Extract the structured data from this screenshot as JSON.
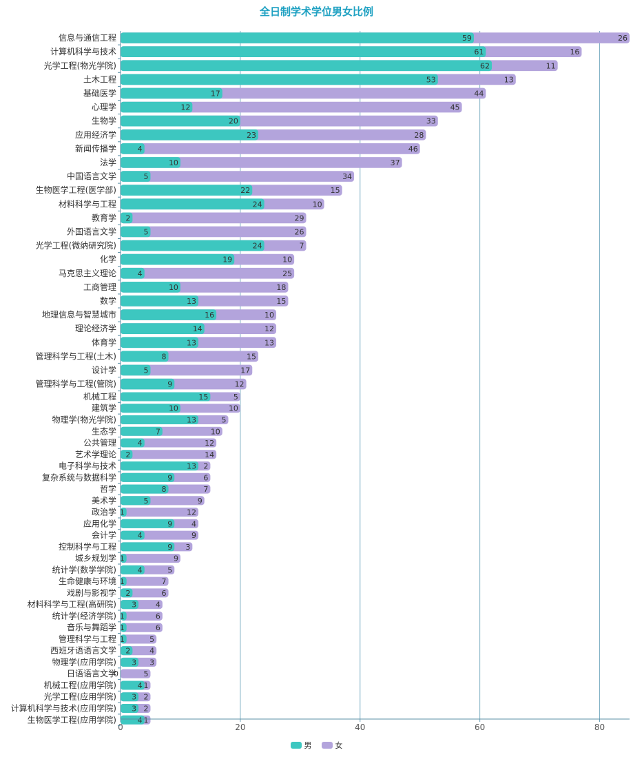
{
  "chart_data": {
    "type": "bar",
    "orientation": "horizontal",
    "stacked": true,
    "title": "全日制学术学位男女比例",
    "xlim": [
      0,
      85
    ],
    "x_ticks": [
      0,
      20,
      40,
      60,
      80
    ],
    "grid": true,
    "legend_position": "bottom",
    "categories": [
      "信息与通信工程",
      "计算机科学与技术",
      "光学工程(物光学院)",
      "土木工程",
      "基础医学",
      "心理学",
      "生物学",
      "应用经济学",
      "新闻传播学",
      "法学",
      "中国语言文学",
      "生物医学工程(医学部)",
      "材料科学与工程",
      "教育学",
      "外国语言文学",
      "光学工程(微纳研究院)",
      "化学",
      "马克思主义理论",
      "工商管理",
      "数学",
      "地理信息与智慧城市",
      "理论经济学",
      "体育学",
      "管理科学与工程(土木)",
      "设计学",
      "管理科学与工程(管院)",
      "机械工程",
      "建筑学",
      "物理学(物光学院)",
      "生态学",
      "公共管理",
      "艺术学理论",
      "电子科学与技术",
      "复杂系统与数据科学",
      "哲学",
      "美术学",
      "政治学",
      "应用化学",
      "会计学",
      "控制科学与工程",
      "城乡规划学",
      "统计学(数学学院)",
      "生命健康与环境",
      "戏剧与影视学",
      "材料科学与工程(高研院)",
      "统计学(经济学院)",
      "音乐与舞蹈学",
      "管理科学与工程",
      "西班牙语语言文学",
      "物理学(应用学院)",
      "日语语言文学",
      "机械工程(应用学院)",
      "光学工程(应用学院)",
      "计算机科学与技术(应用学院)",
      "生物医学工程(应用学院)"
    ],
    "series": [
      {
        "name": "男",
        "color": "#3dc7c0",
        "values": [
          59,
          61,
          62,
          53,
          17,
          12,
          20,
          23,
          4,
          10,
          5,
          22,
          24,
          2,
          5,
          24,
          19,
          4,
          10,
          13,
          16,
          14,
          13,
          8,
          5,
          9,
          15,
          10,
          13,
          7,
          4,
          2,
          13,
          9,
          8,
          5,
          1,
          9,
          4,
          9,
          1,
          4,
          1,
          2,
          3,
          1,
          1,
          1,
          2,
          3,
          0,
          4,
          3,
          3,
          4
        ]
      },
      {
        "name": "女",
        "color": "#b3a4dc",
        "values": [
          26,
          16,
          11,
          13,
          44,
          45,
          33,
          28,
          46,
          37,
          34,
          15,
          10,
          29,
          26,
          7,
          10,
          25,
          18,
          15,
          10,
          12,
          13,
          15,
          17,
          12,
          5,
          10,
          5,
          10,
          12,
          14,
          2,
          6,
          7,
          9,
          12,
          4,
          9,
          3,
          9,
          5,
          7,
          6,
          4,
          6,
          6,
          5,
          4,
          3,
          5,
          1,
          2,
          2,
          1
        ]
      }
    ]
  }
}
